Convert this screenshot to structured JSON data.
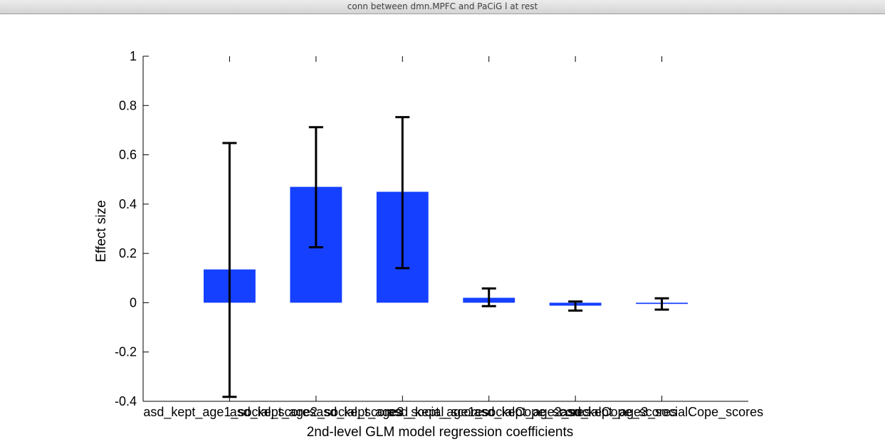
{
  "window": {
    "title": "conn between dmn.MPFC and PaCiG l  at rest"
  },
  "chart_data": {
    "type": "bar",
    "title": "",
    "xlabel": "2nd-level GLM model regression coefficients",
    "ylabel": "Effect size",
    "ylim": [
      -0.4,
      1
    ],
    "yticks": [
      -0.4,
      -0.2,
      0,
      0.2,
      0.4,
      0.6,
      0.8,
      1
    ],
    "ytick_labels": [
      "-0.4",
      "-0.2",
      "0",
      "0.2",
      "0.4",
      "0.6",
      "0.8",
      "1"
    ],
    "categories": [
      "asd_kept_age1_social_scores",
      "asd_kept_age2_social_scores",
      "asd_kept_age3_social_scores",
      "asd_kept_age1_socialCope_scores",
      "asd_kept_age2_socialCope_scores",
      "asd_kept_age3_socialCope_scores"
    ],
    "values": [
      0.135,
      0.47,
      0.45,
      0.02,
      -0.012,
      -0.005
    ],
    "error_low": [
      -0.382,
      0.225,
      0.14,
      -0.014,
      -0.032,
      -0.028
    ],
    "error_high": [
      0.648,
      0.712,
      0.753,
      0.058,
      0.005,
      0.018
    ],
    "bar_color": "#1540ff",
    "grid": false
  }
}
